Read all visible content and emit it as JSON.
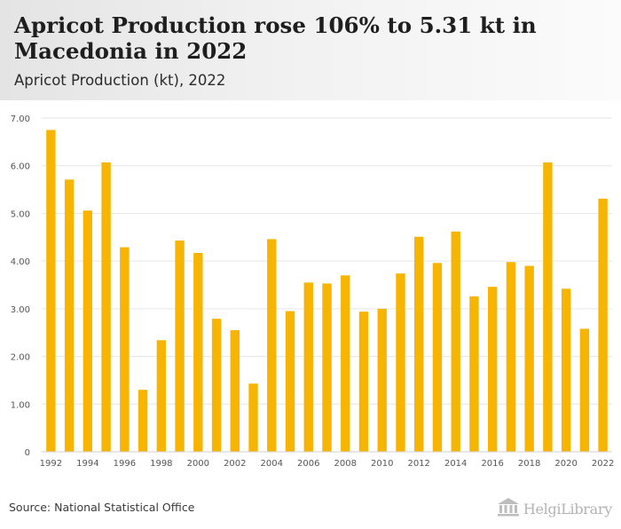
{
  "header": {
    "title": "Apricot Production rose 106% to 5.31 kt in Macedonia in 2022",
    "subtitle": "Apricot Production (kt), 2022"
  },
  "footer": {
    "source": "Source: National Statistical Office",
    "brand": "HelgiLibrary"
  },
  "colors": {
    "bar": "#f7b400",
    "grid": "#e6e6e6",
    "axis": "#555555"
  },
  "chart_data": {
    "type": "bar",
    "title": "",
    "xlabel": "",
    "ylabel": "",
    "categories": [
      "1992",
      "1993",
      "1994",
      "1995",
      "1996",
      "1997",
      "1998",
      "1999",
      "2000",
      "2001",
      "2002",
      "2003",
      "2004",
      "2005",
      "2006",
      "2007",
      "2008",
      "2009",
      "2010",
      "2011",
      "2012",
      "2013",
      "2014",
      "2015",
      "2016",
      "2017",
      "2018",
      "2019",
      "2020",
      "2021",
      "2022"
    ],
    "x_tick_labels": [
      "1992",
      "1994",
      "1996",
      "1998",
      "2000",
      "2002",
      "2004",
      "2006",
      "2008",
      "2010",
      "2012",
      "2014",
      "2016",
      "2018",
      "2020",
      "2022"
    ],
    "values": [
      6.75,
      5.71,
      5.06,
      6.07,
      4.29,
      1.3,
      2.34,
      4.43,
      4.17,
      2.79,
      2.55,
      1.43,
      4.46,
      2.95,
      3.55,
      3.53,
      3.7,
      2.94,
      3.0,
      3.74,
      4.51,
      3.96,
      4.62,
      3.26,
      3.46,
      3.98,
      3.9,
      6.07,
      3.42,
      2.58,
      5.31
    ],
    "ylim": [
      0,
      7
    ],
    "yticks": [
      "0",
      "1.00",
      "2.00",
      "3.00",
      "4.00",
      "5.00",
      "6.00",
      "7.00"
    ],
    "grid": true
  }
}
